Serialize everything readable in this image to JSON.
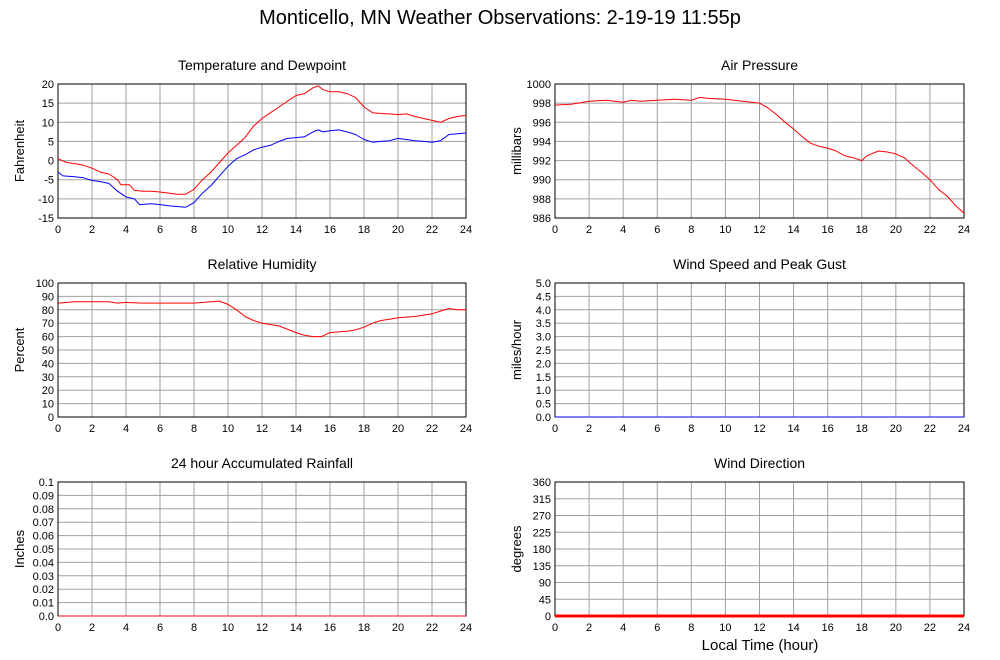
{
  "page_title": "Monticello, MN Weather Observations: 2-19-19 11:55p",
  "shared_xlabel": "Local Time (hour)",
  "x_ticks": [
    "0",
    "2",
    "4",
    "6",
    "8",
    "10",
    "12",
    "14",
    "16",
    "18",
    "20",
    "22",
    "24"
  ],
  "colors": {
    "red": "#ff0000",
    "blue": "#0000ff",
    "grid": "#a0a0a0"
  },
  "chart_data": [
    {
      "type": "line",
      "title": "Temperature and Dewpoint",
      "ylabel": "Fahrenheit",
      "xlim": [
        0,
        24
      ],
      "ylim": [
        -15,
        20
      ],
      "y_ticks": [
        "-15",
        "-10",
        "-5",
        "0",
        "5",
        "10",
        "15",
        "20"
      ],
      "grid": true,
      "series": [
        {
          "color": "#ff0000",
          "points": [
            [
              0,
              0.5
            ],
            [
              0.5,
              -0.5
            ],
            [
              1,
              -0.8
            ],
            [
              1.5,
              -1.2
            ],
            [
              2,
              -2
            ],
            [
              2.5,
              -3
            ],
            [
              3,
              -3.5
            ],
            [
              3.5,
              -5
            ],
            [
              3.7,
              -6.3
            ],
            [
              4.2,
              -6.3
            ],
            [
              4.5,
              -7.8
            ],
            [
              5,
              -8
            ],
            [
              5.5,
              -8
            ],
            [
              6,
              -8.2
            ],
            [
              6.5,
              -8.5
            ],
            [
              7,
              -8.8
            ],
            [
              7.5,
              -8.8
            ],
            [
              8,
              -7.5
            ],
            [
              8.5,
              -5
            ],
            [
              9,
              -3
            ],
            [
              9.5,
              -0.5
            ],
            [
              10,
              2
            ],
            [
              10.5,
              4
            ],
            [
              11,
              6
            ],
            [
              11.5,
              9
            ],
            [
              12,
              11
            ],
            [
              12.5,
              12.5
            ],
            [
              13,
              14
            ],
            [
              13.5,
              15.5
            ],
            [
              14,
              17
            ],
            [
              14.5,
              17.5
            ],
            [
              15,
              19
            ],
            [
              15.3,
              19.5
            ],
            [
              15.6,
              18.5
            ],
            [
              16,
              18
            ],
            [
              16.5,
              18
            ],
            [
              17,
              17.5
            ],
            [
              17.5,
              16.5
            ],
            [
              18,
              14
            ],
            [
              18.5,
              12.5
            ],
            [
              19,
              12.3
            ],
            [
              19.5,
              12.2
            ],
            [
              20,
              12
            ],
            [
              20.5,
              12.2
            ],
            [
              21,
              11.5
            ],
            [
              21.5,
              11
            ],
            [
              22,
              10.5
            ],
            [
              22.5,
              10
            ],
            [
              23,
              11
            ],
            [
              23.5,
              11.5
            ],
            [
              24,
              11.8
            ]
          ]
        },
        {
          "color": "#0000ff",
          "points": [
            [
              0,
              -3
            ],
            [
              0.3,
              -4
            ],
            [
              1,
              -4.2
            ],
            [
              1.5,
              -4.5
            ],
            [
              2,
              -5.2
            ],
            [
              2.5,
              -5.5
            ],
            [
              3,
              -6
            ],
            [
              3.5,
              -8
            ],
            [
              4,
              -9.5
            ],
            [
              4.5,
              -10
            ],
            [
              4.8,
              -11.5
            ],
            [
              5.5,
              -11.3
            ],
            [
              6,
              -11.5
            ],
            [
              6.5,
              -11.8
            ],
            [
              7,
              -12
            ],
            [
              7.5,
              -12.2
            ],
            [
              8,
              -11
            ],
            [
              8.5,
              -8.5
            ],
            [
              9,
              -6.5
            ],
            [
              9.5,
              -4
            ],
            [
              10,
              -1.5
            ],
            [
              10.5,
              0.5
            ],
            [
              11,
              1.5
            ],
            [
              11.5,
              2.8
            ],
            [
              12,
              3.5
            ],
            [
              12.5,
              4
            ],
            [
              13,
              5
            ],
            [
              13.5,
              5.8
            ],
            [
              14,
              6
            ],
            [
              14.5,
              6.2
            ],
            [
              15,
              7.5
            ],
            [
              15.3,
              8
            ],
            [
              15.6,
              7.5
            ],
            [
              16,
              7.8
            ],
            [
              16.5,
              8
            ],
            [
              17,
              7.5
            ],
            [
              17.5,
              6.8
            ],
            [
              18,
              5.5
            ],
            [
              18.5,
              4.8
            ],
            [
              19,
              5
            ],
            [
              19.5,
              5.2
            ],
            [
              20,
              5.8
            ],
            [
              20.5,
              5.5
            ],
            [
              21,
              5.2
            ],
            [
              21.5,
              5
            ],
            [
              22,
              4.8
            ],
            [
              22.5,
              5.2
            ],
            [
              23,
              6.8
            ],
            [
              23.5,
              7
            ],
            [
              24,
              7.2
            ]
          ]
        }
      ]
    },
    {
      "type": "line",
      "title": "Air Pressure",
      "ylabel": "millibars",
      "xlim": [
        0,
        24
      ],
      "ylim": [
        986,
        1000
      ],
      "y_ticks": [
        "986",
        "988",
        "990",
        "992",
        "994",
        "996",
        "998",
        "1000"
      ],
      "grid": true,
      "series": [
        {
          "color": "#ff0000",
          "points": [
            [
              0,
              997.8
            ],
            [
              1,
              997.9
            ],
            [
              2,
              998.2
            ],
            [
              3,
              998.3
            ],
            [
              4,
              998.1
            ],
            [
              4.5,
              998.3
            ],
            [
              5,
              998.2
            ],
            [
              6,
              998.3
            ],
            [
              7,
              998.4
            ],
            [
              8,
              998.3
            ],
            [
              8.5,
              998.6
            ],
            [
              9,
              998.5
            ],
            [
              10,
              998.4
            ],
            [
              11,
              998.2
            ],
            [
              12,
              998
            ],
            [
              12.5,
              997.5
            ],
            [
              13,
              996.8
            ],
            [
              13.5,
              996
            ],
            [
              14,
              995.3
            ],
            [
              14.5,
              994.5
            ],
            [
              15,
              993.8
            ],
            [
              15.5,
              993.5
            ],
            [
              16,
              993.3
            ],
            [
              16.5,
              993
            ],
            [
              17,
              992.5
            ],
            [
              17.5,
              992.3
            ],
            [
              18,
              992
            ],
            [
              18.3,
              992.5
            ],
            [
              18.7,
              992.8
            ],
            [
              19,
              993
            ],
            [
              19.5,
              992.9
            ],
            [
              20,
              992.7
            ],
            [
              20.5,
              992.3
            ],
            [
              21,
              991.5
            ],
            [
              21.5,
              990.8
            ],
            [
              22,
              990
            ],
            [
              22.5,
              989
            ],
            [
              23,
              988.3
            ],
            [
              23.5,
              987.3
            ],
            [
              24,
              986.5
            ]
          ]
        }
      ]
    },
    {
      "type": "line",
      "title": "Relative Humidity",
      "ylabel": "Percent",
      "xlim": [
        0,
        24
      ],
      "ylim": [
        0,
        100
      ],
      "y_ticks": [
        "0",
        "10",
        "20",
        "30",
        "40",
        "50",
        "60",
        "70",
        "80",
        "90",
        "100"
      ],
      "grid": true,
      "series": [
        {
          "color": "#ff0000",
          "points": [
            [
              0,
              85
            ],
            [
              1,
              86
            ],
            [
              2,
              86
            ],
            [
              3,
              86
            ],
            [
              3.5,
              85
            ],
            [
              4,
              85.5
            ],
            [
              5,
              85
            ],
            [
              6,
              85
            ],
            [
              7,
              85
            ],
            [
              8,
              85
            ],
            [
              9,
              86
            ],
            [
              9.5,
              86.5
            ],
            [
              10,
              84
            ],
            [
              10.5,
              80
            ],
            [
              11,
              75
            ],
            [
              11.5,
              72
            ],
            [
              12,
              70
            ],
            [
              13,
              68
            ],
            [
              14,
              63
            ],
            [
              14.5,
              61
            ],
            [
              15,
              60
            ],
            [
              15.5,
              60
            ],
            [
              16,
              63
            ],
            [
              16.5,
              63.5
            ],
            [
              17,
              64
            ],
            [
              17.5,
              65
            ],
            [
              18,
              67
            ],
            [
              18.5,
              70
            ],
            [
              19,
              72
            ],
            [
              19.5,
              73
            ],
            [
              20,
              74
            ],
            [
              21,
              75
            ],
            [
              22,
              77
            ],
            [
              22.5,
              79
            ],
            [
              23,
              81
            ],
            [
              23.5,
              80
            ],
            [
              24,
              80
            ]
          ]
        }
      ]
    },
    {
      "type": "line",
      "title": "Wind Speed and Peak Gust",
      "ylabel": "miles/hour",
      "xlim": [
        0,
        24
      ],
      "ylim": [
        0,
        5
      ],
      "y_ticks": [
        "0.0",
        "0.5",
        "1.0",
        "1.5",
        "2.0",
        "2.5",
        "3.0",
        "3.5",
        "4.0",
        "4.5",
        "5.0"
      ],
      "grid": true,
      "series": [
        {
          "color": "#ff0000",
          "points": [
            [
              0,
              0
            ],
            [
              24,
              0
            ]
          ]
        },
        {
          "color": "#0000ff",
          "points": [
            [
              0,
              0
            ],
            [
              24,
              0
            ]
          ]
        }
      ]
    },
    {
      "type": "line",
      "title": "24 hour Accumulated Rainfall",
      "ylabel": "Inches",
      "xlim": [
        0,
        24
      ],
      "ylim": [
        0,
        0.1
      ],
      "y_ticks": [
        "0.0",
        "0.01",
        "0.02",
        "0.03",
        "0.04",
        "0.05",
        "0.06",
        "0.07",
        "0.08",
        "0.09",
        "0.1"
      ],
      "grid": true,
      "series": [
        {
          "color": "#ff0000",
          "points": [
            [
              0,
              0
            ],
            [
              24,
              0
            ]
          ]
        }
      ]
    },
    {
      "type": "scatter",
      "title": "Wind Direction",
      "ylabel": "degrees",
      "xlim": [
        0,
        24
      ],
      "ylim": [
        0,
        360
      ],
      "y_ticks": [
        "0",
        "45",
        "90",
        "135",
        "180",
        "225",
        "270",
        "315",
        "360"
      ],
      "grid": true,
      "series": [
        {
          "color": "#ff0000",
          "points": [
            [
              0,
              0
            ],
            [
              24,
              0
            ]
          ]
        }
      ]
    }
  ]
}
